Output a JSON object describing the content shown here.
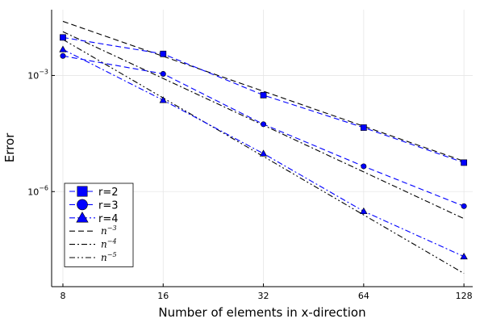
{
  "chart_data": {
    "type": "line",
    "xscale": "log2",
    "yscale": "log10",
    "xlabel": "Number of elements in x-direction",
    "ylabel": "Error",
    "xlim": [
      7.4,
      136
    ],
    "ylim": [
      3.5e-09,
      0.05
    ],
    "x_ticks": [
      {
        "value": 8,
        "label": "8"
      },
      {
        "value": 16,
        "label": "16"
      },
      {
        "value": 32,
        "label": "32"
      },
      {
        "value": 64,
        "label": "64"
      },
      {
        "value": 128,
        "label": "128"
      }
    ],
    "y_ticks": [
      {
        "value": 0.001,
        "base": "10",
        "exp": "−3"
      },
      {
        "value": 1e-06,
        "base": "10",
        "exp": "−6"
      }
    ],
    "grid": true,
    "legend_position": "bottom-left",
    "series": [
      {
        "name": "r=2",
        "marker": "square",
        "color": "#0000ff",
        "dash": "dash",
        "x": [
          8,
          16,
          32,
          64,
          128
        ],
        "y": [
          0.0096,
          0.0036,
          0.00031,
          4.5e-05,
          5.6e-06
        ]
      },
      {
        "name": "r=3",
        "marker": "circle",
        "color": "#0000ff",
        "dash": "dash",
        "x": [
          8,
          16,
          32,
          64,
          128
        ],
        "y": [
          0.0032,
          0.0011,
          5.5e-05,
          4.5e-06,
          4.2e-07
        ]
      },
      {
        "name": "r=4",
        "marker": "triangle",
        "color": "#0000ff",
        "dash": "dashdot",
        "x": [
          8,
          16,
          32,
          64,
          128
        ],
        "y": [
          0.0047,
          0.00023,
          9.6e-06,
          3.1e-07,
          2.1e-08
        ]
      }
    ],
    "reference_lines": [
      {
        "name": "n^{-3}",
        "base": "n",
        "exp": "−3",
        "dash": "dash",
        "color": "#000000",
        "x": [
          8,
          128
        ],
        "y": [
          0.025,
          6.1e-06
        ]
      },
      {
        "name": "n^{-4}",
        "base": "n",
        "exp": "−4",
        "dash": "dashdot",
        "color": "#000000",
        "x": [
          8,
          128
        ],
        "y": [
          0.0135,
          2e-07
        ]
      },
      {
        "name": "n^{-5}",
        "base": "n",
        "exp": "−5",
        "dash": "dashdotdot",
        "color": "#000000",
        "x": [
          8,
          128
        ],
        "y": [
          0.0085,
          7.7e-09
        ]
      }
    ]
  }
}
